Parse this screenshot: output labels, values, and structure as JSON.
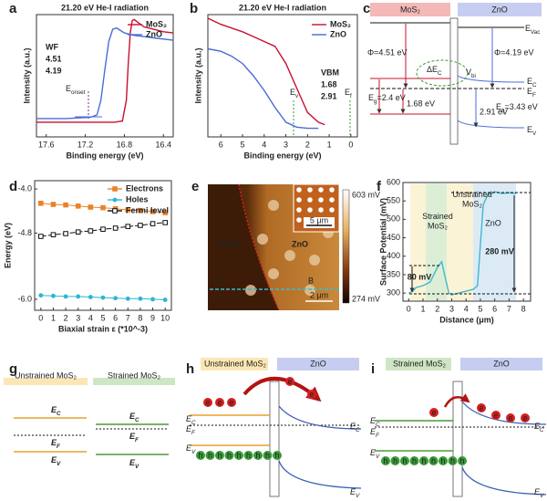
{
  "chart_data": [
    {
      "panel": "a",
      "type": "line",
      "title": "21.20 eV He-I radiation",
      "x_label": "Binding energy (eV)",
      "y_label": "Intensity (a.u.)",
      "xlim": [
        17.7,
        16.3
      ],
      "ylim": [
        0,
        1
      ],
      "xticks": [
        17.6,
        17.2,
        16.8,
        16.4
      ],
      "legend": "upper right",
      "series": [
        {
          "name": "MoS₂",
          "color": "#c8102e",
          "x": [
            17.7,
            17.2,
            16.9,
            16.82,
            16.78,
            16.76,
            16.74,
            16.72,
            16.7,
            16.65,
            16.6,
            16.5,
            16.4,
            16.3
          ],
          "values": [
            0.12,
            0.12,
            0.12,
            0.13,
            0.3,
            0.6,
            0.85,
            0.95,
            0.96,
            0.93,
            0.9,
            0.88,
            0.86,
            0.85
          ]
        },
        {
          "name": "ZnO",
          "color": "#4a6cd4",
          "x": [
            17.7,
            17.4,
            17.15,
            17.08,
            17.04,
            17.0,
            16.96,
            16.92,
            16.88,
            16.84,
            16.8,
            16.7,
            16.6,
            16.5,
            16.4,
            16.3
          ],
          "values": [
            0.15,
            0.15,
            0.16,
            0.18,
            0.3,
            0.55,
            0.78,
            0.88,
            0.89,
            0.87,
            0.85,
            0.83,
            0.82,
            0.81,
            0.8,
            0.79
          ]
        }
      ],
      "annotations": [
        "WF",
        "4.51",
        "4.19",
        {
          "base": "E",
          "sub": "onset"
        }
      ]
    },
    {
      "panel": "b",
      "type": "line",
      "title": "21.20 eV He-I radiation",
      "x_label": "Binding energy (eV)",
      "y_label": "Intensity (a.u.)",
      "xlim": [
        6.6,
        -0.3
      ],
      "ylim": [
        0,
        1
      ],
      "xticks": [
        6,
        5,
        4,
        3,
        2,
        1,
        0
      ],
      "legend": "upper right",
      "series": [
        {
          "name": "MoS₂",
          "color": "#c8102e",
          "x": [
            6.6,
            6.0,
            5.0,
            4.5,
            4.0,
            3.5,
            3.0,
            2.5,
            2.0,
            1.5,
            1.2
          ],
          "values": [
            0.97,
            0.92,
            0.86,
            0.82,
            0.78,
            0.74,
            0.6,
            0.4,
            0.2,
            0.12,
            0.1
          ]
        },
        {
          "name": "ZnO",
          "color": "#4a6cd4",
          "x": [
            6.6,
            6.0,
            5.5,
            5.0,
            4.5,
            4.0,
            3.5,
            3.0,
            2.5,
            2.0,
            1.5
          ],
          "values": [
            0.72,
            0.7,
            0.66,
            0.6,
            0.5,
            0.38,
            0.24,
            0.12,
            0.08,
            0.07,
            0.07
          ]
        }
      ],
      "annotations": [
        "VBM",
        "1.68",
        "2.91",
        {
          "base": "E",
          "sub": "v"
        },
        {
          "base": "E",
          "sub": "f"
        }
      ]
    },
    {
      "panel": "d",
      "type": "line",
      "x_label": "Biaxial strain ε (*10^-3)",
      "y_label": "Energy (eV)",
      "x": [
        0,
        1,
        2,
        3,
        4,
        5,
        6,
        7,
        8,
        9,
        10
      ],
      "xlim": [
        -0.5,
        10.5
      ],
      "xticks": [
        0,
        1,
        2,
        3,
        4,
        5,
        6,
        7,
        8,
        9,
        10
      ],
      "ylim": [
        -6.2,
        -3.85
      ],
      "yticks": [
        {
          "value": -4.0,
          "label": "-4.0"
        },
        {
          "value": -4.8,
          "label": "-4.8"
        },
        {
          "value": -6.0,
          "label": "-6.0"
        }
      ],
      "legend": "upper right",
      "series": [
        {
          "name": "Electrons",
          "color": "#e8822a",
          "marker": "square",
          "values": [
            -4.26,
            -4.28,
            -4.29,
            -4.31,
            -4.33,
            -4.34,
            -4.36,
            -4.38,
            -4.39,
            -4.41,
            -4.43
          ]
        },
        {
          "name": "Holes",
          "color": "#2cb5d6",
          "marker": "circle",
          "values": [
            -5.93,
            -5.94,
            -5.95,
            -5.95,
            -5.96,
            -5.97,
            -5.98,
            -5.99,
            -5.99,
            -6.0,
            -6.01
          ]
        },
        {
          "name": "Fermi level",
          "color": "#111111",
          "marker": "open-square",
          "values": [
            -4.86,
            -4.83,
            -4.81,
            -4.78,
            -4.76,
            -4.73,
            -4.71,
            -4.68,
            -4.66,
            -4.63,
            -4.61
          ]
        }
      ]
    },
    {
      "panel": "f",
      "type": "line",
      "x_label": "Distance (μm)",
      "y_label": "Surface Potential (mV)",
      "xlim": [
        -0.4,
        8.5
      ],
      "ylim": [
        278,
        600
      ],
      "xticks": [
        0,
        1,
        2,
        3,
        4,
        5,
        6,
        7,
        8
      ],
      "yticks": [
        300,
        350,
        400,
        450,
        500,
        550,
        600
      ],
      "color": "#3fb8d0",
      "x": [
        0,
        0.3,
        0.5,
        1,
        1.5,
        2,
        2.3,
        2.5,
        2.8,
        3,
        3.5,
        4,
        4.5,
        4.8,
        5,
        5.2,
        5.5,
        6,
        6.5,
        7,
        7.5
      ],
      "values": [
        300,
        305,
        315,
        320,
        330,
        370,
        385,
        350,
        300,
        295,
        300,
        305,
        310,
        320,
        430,
        540,
        565,
        575,
        570,
        572,
        570
      ],
      "annotations": [
        "80 mV",
        "280 mV",
        [
          "Strained",
          "MoS₂"
        ],
        [
          "Unstrained",
          "MoS₂"
        ],
        "ZnO"
      ]
    }
  ],
  "panel_c": {
    "panel": "c",
    "headers": [
      "MoS₂",
      "ZnO"
    ],
    "labels": [
      {
        "base": "E",
        "sub": "Vac"
      },
      "Φ=4.51 eV",
      "Φ=4.19 eV",
      {
        "base": "ΔE",
        "sub": "C"
      },
      {
        "base": "V",
        "sub": "bi"
      },
      {
        "base": "E",
        "sub": "C"
      },
      {
        "base": "E",
        "sub": "F"
      },
      {
        "base": "E",
        "sub": "g",
        "tail": "=2.4 eV"
      },
      "1.68 eV",
      "2.91 eV",
      {
        "base": "E",
        "sub": "g",
        "tail": "=3.43 eV"
      },
      {
        "base": "E",
        "sub": "V"
      }
    ]
  },
  "panel_e": {
    "panel": "e",
    "labels": [
      "MoS₂",
      "ZnO",
      "A",
      "B"
    ],
    "scale_bars": [
      "5 μm",
      "2 μm"
    ],
    "colorbar": [
      "603 mV",
      "274 mV"
    ]
  },
  "panel_g": {
    "panel": "g",
    "headers": [
      "Unstrained MoS₂",
      "Strained MoS₂"
    ],
    "labels": [
      {
        "base": "E",
        "sub": "C"
      },
      {
        "base": "E",
        "sub": "C"
      },
      {
        "base": "E",
        "sub": "F"
      },
      {
        "base": "E",
        "sub": "F"
      },
      {
        "base": "E",
        "sub": "V"
      },
      {
        "base": "E",
        "sub": "V"
      }
    ]
  },
  "panel_h": {
    "panel": "h",
    "headers": [
      "Unstrained MoS₂",
      "ZnO"
    ],
    "labels": [
      {
        "base": "E",
        "sub": "C"
      },
      {
        "base": "E",
        "sub": "F"
      },
      {
        "base": "E",
        "sub": "V"
      },
      {
        "base": "E",
        "sub": "C"
      },
      {
        "base": "E",
        "sub": "V"
      }
    ],
    "electron": "e",
    "hole": "h"
  },
  "panel_i": {
    "panel": "i",
    "headers": [
      "Strained MoS₂",
      "ZnO"
    ],
    "labels": [
      {
        "base": "E",
        "sub": "C"
      },
      {
        "base": "E",
        "sub": "F"
      },
      {
        "base": "E",
        "sub": "V"
      },
      {
        "base": "E",
        "sub": "C"
      },
      {
        "base": "E",
        "sub": "V"
      }
    ],
    "electron": "e",
    "hole": "h"
  }
}
